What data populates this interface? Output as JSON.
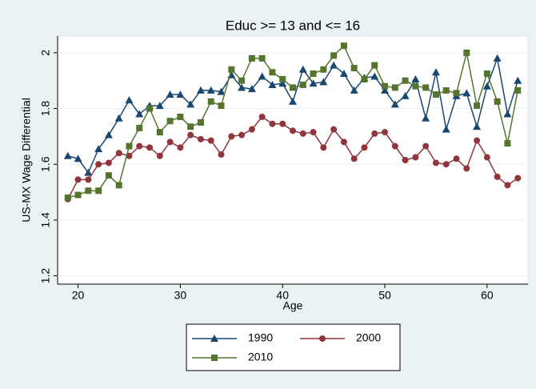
{
  "chart_data": {
    "type": "line",
    "title": "Educ >= 13 and <= 16",
    "x_label": "Age",
    "y_label": "US-MX Wage Differential",
    "x": [
      19,
      20,
      21,
      22,
      23,
      24,
      25,
      26,
      27,
      28,
      29,
      30,
      31,
      32,
      33,
      34,
      35,
      36,
      37,
      38,
      39,
      40,
      41,
      42,
      43,
      44,
      45,
      46,
      47,
      48,
      49,
      50,
      51,
      52,
      53,
      54,
      55,
      56,
      57,
      58,
      59,
      60,
      61,
      62,
      63
    ],
    "series": [
      {
        "name": "1990",
        "color": "#1a476f",
        "marker": "triangle",
        "values": [
          1.63,
          1.62,
          1.57,
          1.655,
          1.705,
          1.765,
          1.83,
          1.78,
          1.81,
          1.81,
          1.85,
          1.85,
          1.815,
          1.865,
          1.865,
          1.86,
          1.92,
          1.875,
          1.87,
          1.915,
          1.885,
          1.89,
          1.825,
          1.94,
          1.89,
          1.895,
          1.955,
          1.925,
          1.865,
          1.91,
          1.915,
          1.865,
          1.815,
          1.845,
          1.905,
          1.765,
          1.93,
          1.725,
          1.845,
          1.855,
          1.735,
          1.88,
          1.98,
          1.78,
          1.9
        ]
      },
      {
        "name": "2000",
        "color": "#90353b",
        "marker": "circle",
        "values": [
          1.475,
          1.545,
          1.545,
          1.6,
          1.605,
          1.64,
          1.63,
          1.665,
          1.66,
          1.63,
          1.68,
          1.66,
          1.705,
          1.69,
          1.685,
          1.635,
          1.7,
          1.705,
          1.725,
          1.77,
          1.745,
          1.745,
          1.72,
          1.71,
          1.715,
          1.66,
          1.725,
          1.68,
          1.62,
          1.66,
          1.71,
          1.715,
          1.665,
          1.615,
          1.625,
          1.665,
          1.605,
          1.6,
          1.62,
          1.585,
          1.685,
          1.625,
          1.555,
          1.525,
          1.55
        ]
      },
      {
        "name": "2010",
        "color": "#55752f",
        "marker": "square",
        "values": [
          1.48,
          1.49,
          1.505,
          1.505,
          1.56,
          1.525,
          1.665,
          1.73,
          1.8,
          1.715,
          1.755,
          1.77,
          1.735,
          1.75,
          1.825,
          1.81,
          1.94,
          1.9,
          1.98,
          1.98,
          1.93,
          1.905,
          1.875,
          1.885,
          1.925,
          1.94,
          1.99,
          2.025,
          1.945,
          1.905,
          1.955,
          1.88,
          1.875,
          1.9,
          1.88,
          1.875,
          1.85,
          1.865,
          1.855,
          2.0,
          1.81,
          1.925,
          1.825,
          1.675,
          1.865
        ]
      }
    ],
    "xlim": [
      18,
      64
    ],
    "xticks": [
      20,
      30,
      40,
      50,
      60
    ],
    "ylim": [
      1.17,
      2.06
    ],
    "yticks": [
      1.2,
      1.4,
      1.6,
      1.8,
      2
    ],
    "grid": true
  }
}
